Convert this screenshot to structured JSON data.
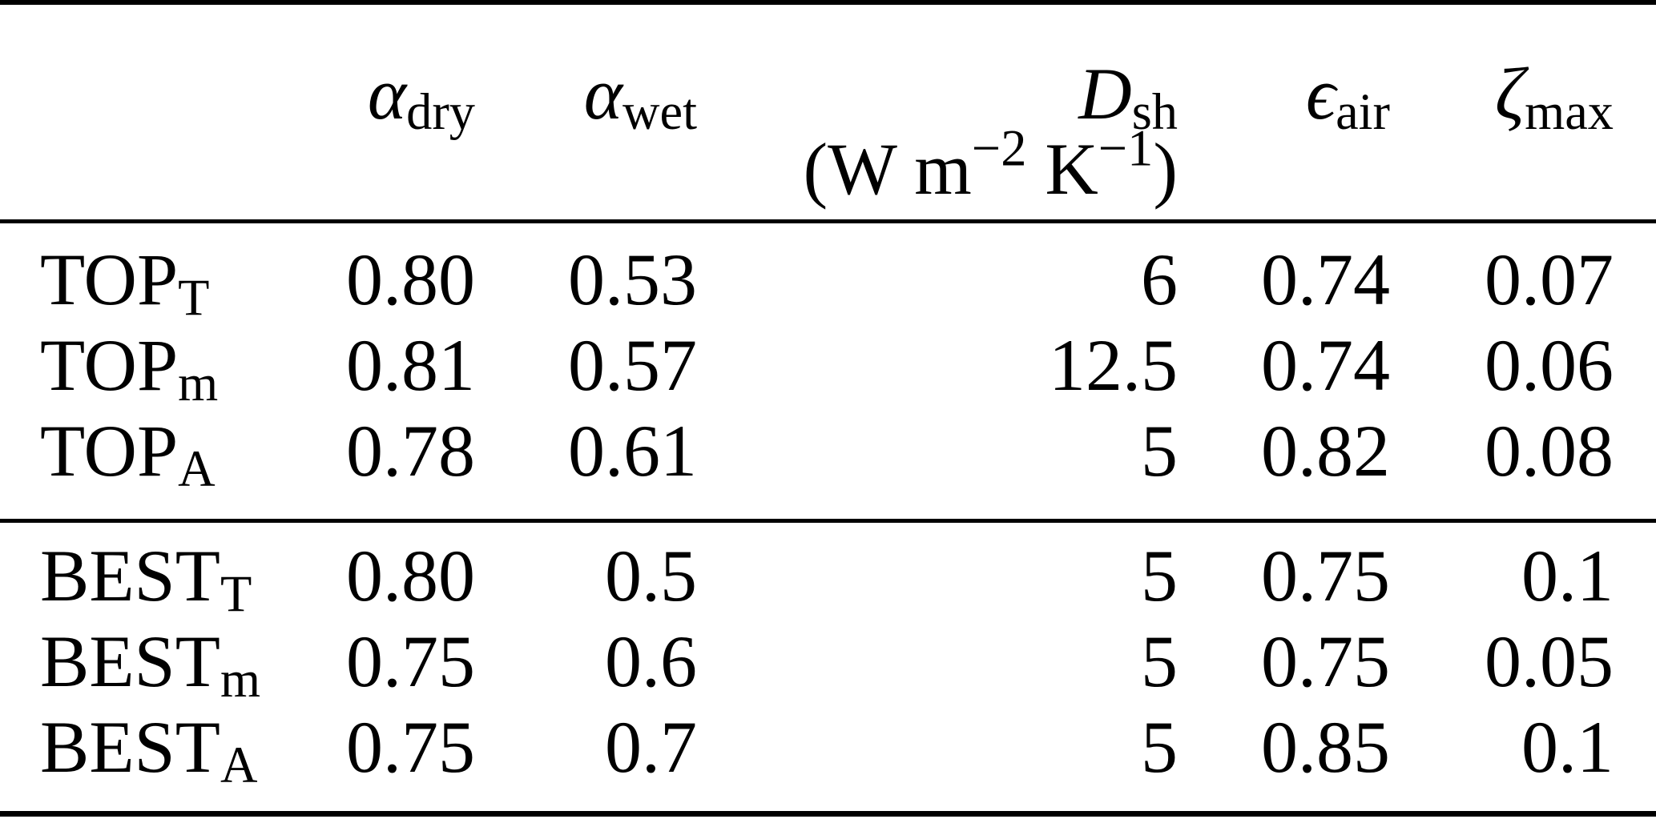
{
  "colors": {
    "background": "#ffffff",
    "text": "#000000",
    "rule": "#000000"
  },
  "table": {
    "columns": [
      {
        "base": "α",
        "sub": "dry"
      },
      {
        "base": "α",
        "sub": "wet"
      },
      {
        "base": "D",
        "sub": "sh"
      },
      {
        "base": "ϵ",
        "sub": "air"
      },
      {
        "base": "ζ",
        "sub": "max"
      }
    ],
    "unit": {
      "prefix": "(W m",
      "sup1": "−2",
      "mid": " K",
      "sup2": "−1",
      "suffix": ")"
    },
    "groups": [
      {
        "rows": [
          {
            "base": "TOP",
            "sub": "T",
            "values": [
              "0.80",
              "0.53",
              "6",
              "0.74",
              "0.07"
            ]
          },
          {
            "base": "TOP",
            "sub": "m",
            "values": [
              "0.81",
              "0.57",
              "12.5",
              "0.74",
              "0.06"
            ]
          },
          {
            "base": "TOP",
            "sub": "A",
            "values": [
              "0.78",
              "0.61",
              "5",
              "0.82",
              "0.08"
            ]
          }
        ]
      },
      {
        "rows": [
          {
            "base": "BEST",
            "sub": "T",
            "values": [
              "0.80",
              "0.5",
              "5",
              "0.75",
              "0.1"
            ]
          },
          {
            "base": "BEST",
            "sub": "m",
            "values": [
              "0.75",
              "0.6",
              "5",
              "0.75",
              "0.05"
            ]
          },
          {
            "base": "BEST",
            "sub": "A",
            "values": [
              "0.75",
              "0.7",
              "5",
              "0.85",
              "0.1"
            ]
          }
        ]
      }
    ]
  }
}
